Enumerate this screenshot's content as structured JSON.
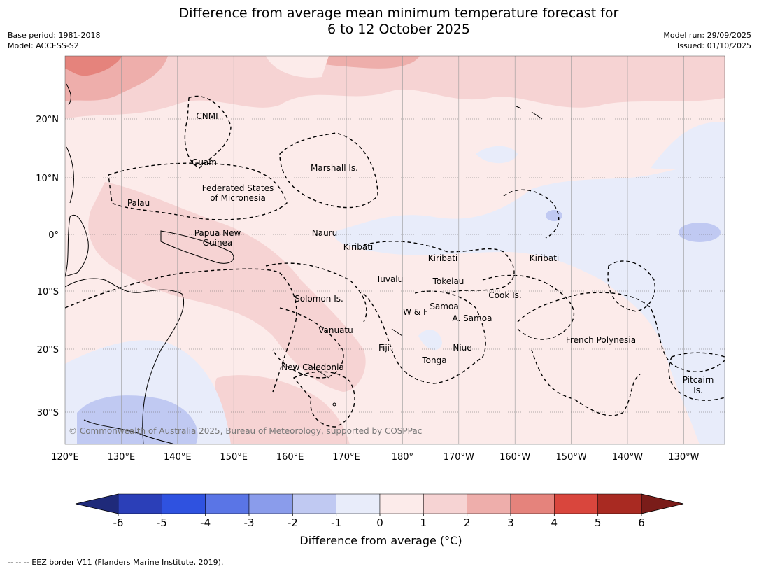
{
  "title_line1": "Difference from average mean minimum temperature forecast for",
  "title_line2": "6 to 12 October 2025",
  "base_period": "Base period: 1981-2018",
  "model": "Model: ACCESS-S2",
  "model_run": "Model run: 29/09/2025",
  "issued": "Issued: 01/10/2025",
  "copyright": "© Commonwealth of Australia 2025, Bureau of Meteorology, supported by COSPPac",
  "footnote": "--  --  -- EEZ border V11 (Flanders Marine Institute, 2019).",
  "lon_ticks": [
    "120°E",
    "130°E",
    "140°E",
    "150°E",
    "160°E",
    "170°E",
    "180°",
    "170°W",
    "160°W",
    "150°W",
    "140°W",
    "130°W"
  ],
  "lat_ticks": [
    "20°N",
    "10°N",
    "0°",
    "10°S",
    "20°S",
    "30°S"
  ],
  "places": [
    {
      "name": "CNMI"
    },
    {
      "name": "Guam"
    },
    {
      "name": "Marshall Is."
    },
    {
      "name": "Federated States"
    },
    {
      "name": "of Micronesia"
    },
    {
      "name": "Palau"
    },
    {
      "name": "Papua New"
    },
    {
      "name": "Guinea"
    },
    {
      "name": "Nauru"
    },
    {
      "name": "Kiribati"
    },
    {
      "name": "Kiribati"
    },
    {
      "name": "Kiribati"
    },
    {
      "name": "Tuvalu"
    },
    {
      "name": "Tokelau"
    },
    {
      "name": "Cook Is."
    },
    {
      "name": "Solomon Is."
    },
    {
      "name": "Samoa"
    },
    {
      "name": "W & F"
    },
    {
      "name": "A. Samoa"
    },
    {
      "name": "Vanuatu"
    },
    {
      "name": "Fiji"
    },
    {
      "name": "Niue"
    },
    {
      "name": "Tonga"
    },
    {
      "name": "French Polynesia"
    },
    {
      "name": "New Caledonia"
    },
    {
      "name": "Pitcairn"
    },
    {
      "name": "Is."
    }
  ],
  "colorbar": {
    "label": "Difference from average (°C)",
    "ticks": [
      "-6",
      "-5",
      "-4",
      "-3",
      "-2",
      "-1",
      "0",
      "1",
      "2",
      "3",
      "4",
      "5",
      "6"
    ],
    "colors": [
      "#1f2a7a",
      "#2b3fb8",
      "#2f52e0",
      "#5a75e6",
      "#8a9ceb",
      "#c0c9f2",
      "#e8ecfa",
      "#fcebea",
      "#f6d3d3",
      "#eeaeab",
      "#e5837c",
      "#d9463d",
      "#a92a22",
      "#7a1c19"
    ]
  },
  "legend_unit": "°C"
}
